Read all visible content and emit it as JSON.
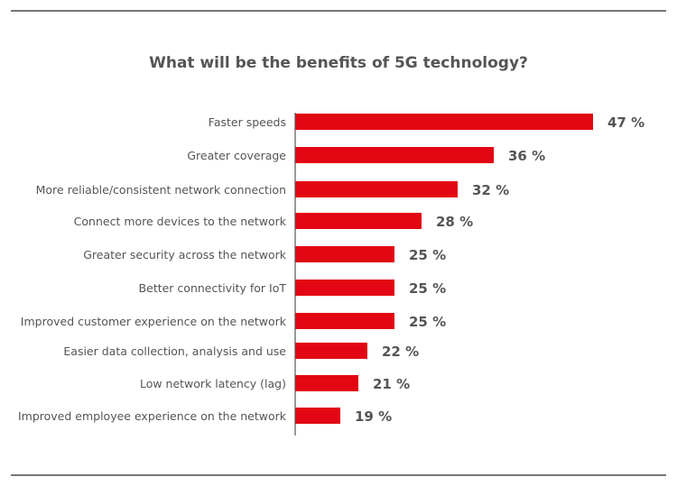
{
  "chart_data": {
    "type": "bar",
    "orientation": "horizontal",
    "title": "What will be the benefits of 5G technology?",
    "categories": [
      "Faster speeds",
      "Greater coverage",
      "More reliable/consistent network connection",
      "Connect more devices to the network",
      "Greater security across the network",
      "Better connectivity for IoT",
      "Improved customer experience on the network",
      "Easier data collection, analysis and use",
      "Low network latency (lag)",
      "Improved employee experience on the network"
    ],
    "values": [
      47,
      36,
      32,
      28,
      25,
      25,
      25,
      22,
      21,
      19
    ],
    "value_labels": [
      "47 %",
      "36 %",
      "32 %",
      "28 %",
      "25 %",
      "25 %",
      "25 %",
      "22 %",
      "21 %",
      "19 %"
    ],
    "unit": "%",
    "grid": false,
    "bar_color": "#e30613",
    "text_color": "#555555"
  }
}
